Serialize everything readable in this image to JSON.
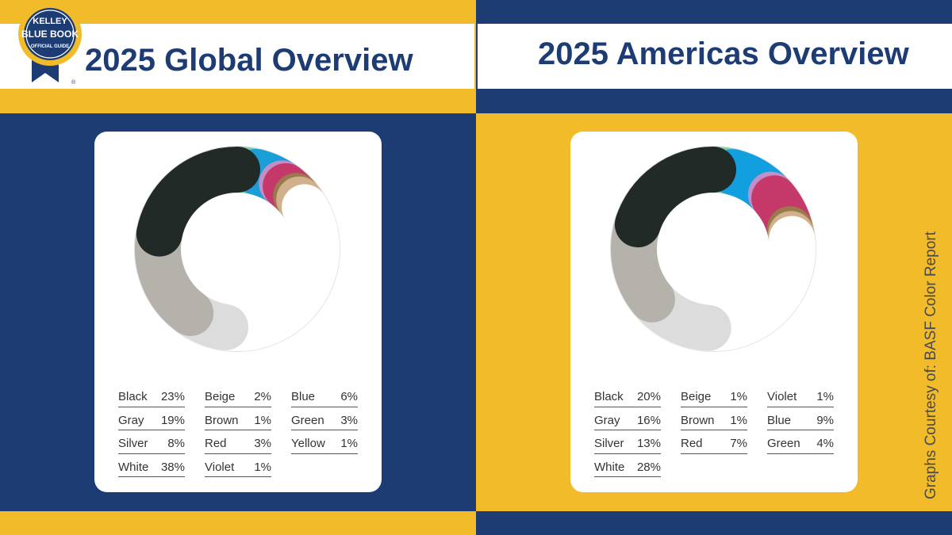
{
  "left": {
    "title": "2025 Global Overview",
    "chart_data": {
      "type": "pie",
      "title": "2025 Global Overview",
      "slices": [
        {
          "label": "Black",
          "value": 23,
          "color": "#222a27"
        },
        {
          "label": "Gray",
          "value": 19,
          "color": "#b5b2ab"
        },
        {
          "label": "Silver",
          "value": 8,
          "color": "#dcdcdc"
        },
        {
          "label": "White",
          "value": 38,
          "color": "#ffffff"
        },
        {
          "label": "Beige",
          "value": 2,
          "color": "#d1b08c"
        },
        {
          "label": "Brown",
          "value": 1,
          "color": "#9a7a4c"
        },
        {
          "label": "Red",
          "value": 3,
          "color": "#c5396a"
        },
        {
          "label": "Violet",
          "value": 1,
          "color": "#c190c8"
        },
        {
          "label": "Blue",
          "value": 6,
          "color": "#199ed8"
        },
        {
          "label": "Green",
          "value": 3,
          "color": "#7fcaaa"
        },
        {
          "label": "Yellow",
          "value": 1,
          "color": "#f2ec85"
        }
      ]
    },
    "legend": [
      [
        {
          "label": "Black",
          "value": "23%"
        },
        {
          "label": "Gray",
          "value": "19%"
        },
        {
          "label": "Silver",
          "value": "8%"
        },
        {
          "label": "White",
          "value": "38%"
        }
      ],
      [
        {
          "label": "Beige",
          "value": "2%"
        },
        {
          "label": "Brown",
          "value": "1%"
        },
        {
          "label": "Red",
          "value": "3%"
        },
        {
          "label": "Violet",
          "value": "1%"
        }
      ],
      [
        {
          "label": "Blue",
          "value": "6%"
        },
        {
          "label": "Green",
          "value": "3%"
        },
        {
          "label": "Yellow",
          "value": "1%"
        }
      ]
    ]
  },
  "right": {
    "title": "2025 Americas Overview",
    "chart_data": {
      "type": "pie",
      "title": "2025 Americas Overview",
      "slices": [
        {
          "label": "Black",
          "value": 20,
          "color": "#222a27"
        },
        {
          "label": "Gray",
          "value": 16,
          "color": "#b5b2ab"
        },
        {
          "label": "Silver",
          "value": 13,
          "color": "#dcdcdc"
        },
        {
          "label": "White",
          "value": 28,
          "color": "#ffffff"
        },
        {
          "label": "Beige",
          "value": 1,
          "color": "#d1b08c"
        },
        {
          "label": "Brown",
          "value": 1,
          "color": "#9a7a4c"
        },
        {
          "label": "Red",
          "value": 7,
          "color": "#c5396a"
        },
        {
          "label": "Violet",
          "value": 1,
          "color": "#c190c8"
        },
        {
          "label": "Blue",
          "value": 9,
          "color": "#129fdf"
        },
        {
          "label": "Green",
          "value": 4,
          "color": "#7fcaaa"
        }
      ]
    },
    "legend": [
      [
        {
          "label": "Black",
          "value": "20%"
        },
        {
          "label": "Gray",
          "value": "16%"
        },
        {
          "label": "Silver",
          "value": "13%"
        },
        {
          "label": "White",
          "value": "28%"
        }
      ],
      [
        {
          "label": "Beige",
          "value": "1%"
        },
        {
          "label": "Brown",
          "value": "1%"
        },
        {
          "label": "Red",
          "value": "7%"
        }
      ],
      [
        {
          "label": "Violet",
          "value": "1%"
        },
        {
          "label": "Blue",
          "value": "9%"
        },
        {
          "label": "Green",
          "value": "4%"
        }
      ]
    ]
  },
  "logo": {
    "line1": "KELLEY",
    "line2": "BLUE BOOK",
    "line3": "OFFICIAL GUIDE",
    "mark": "®"
  },
  "credit": "Graphs Courtesy of: BASF Color Report",
  "colors": {
    "navy": "#1d3c74",
    "gold": "#f1bb2a"
  }
}
